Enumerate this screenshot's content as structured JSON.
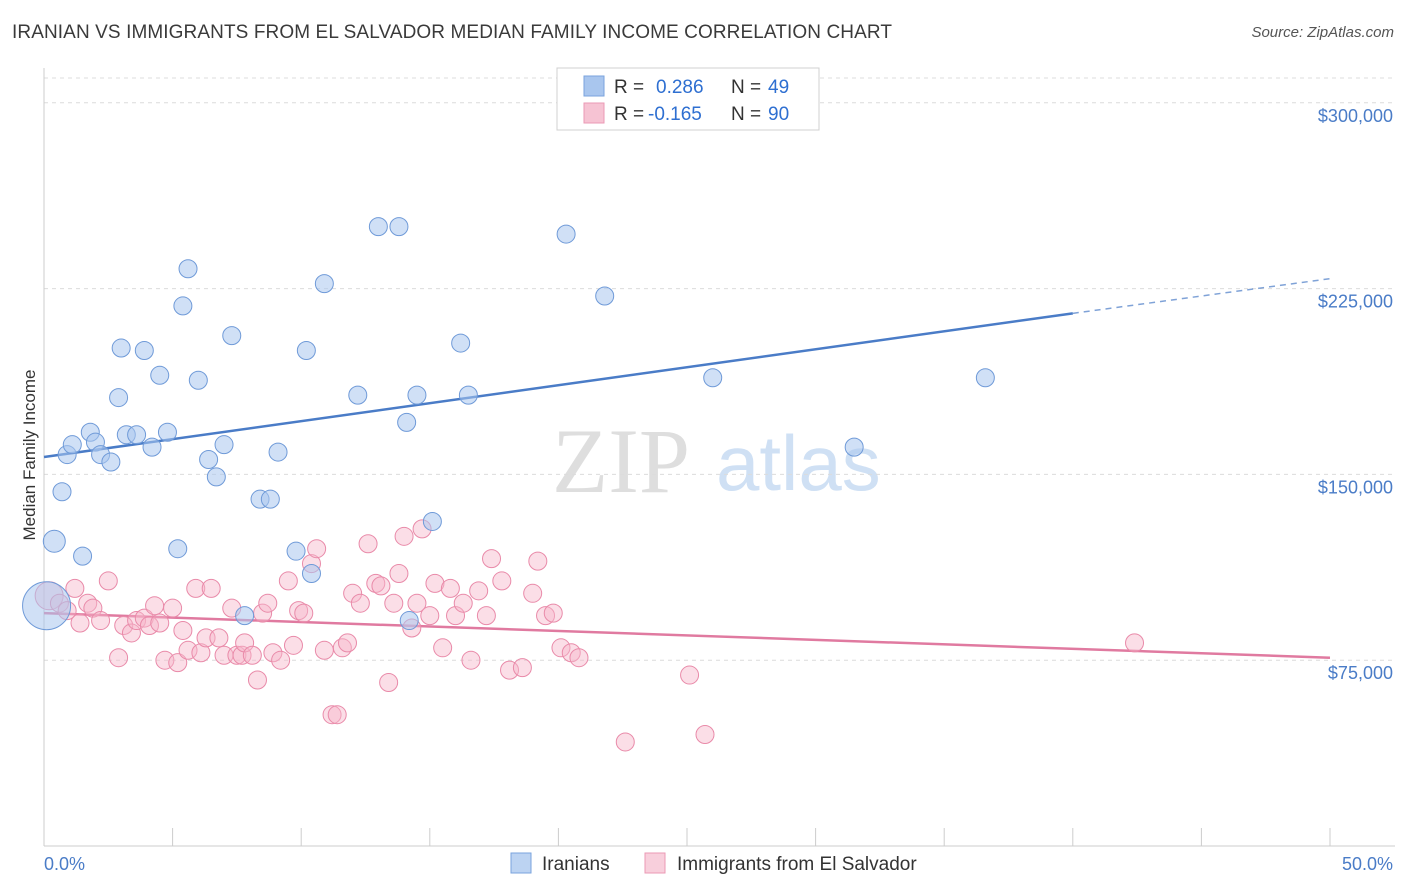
{
  "header": {
    "title": "IRANIAN VS IMMIGRANTS FROM EL SALVADOR MEDIAN FAMILY INCOME CORRELATION CHART",
    "source": "Source: ZipAtlas.com"
  },
  "watermark": {
    "zip": "ZIP",
    "atlas": "atlas"
  },
  "legend": {
    "r_label": "R =",
    "n_label": "N =",
    "rows": [
      {
        "r": "0.286",
        "n": "49",
        "color": "#a9c6ee"
      },
      {
        "r": "-0.165",
        "n": "90",
        "color": "#f6b6ca"
      }
    ]
  },
  "bottom_legend": [
    "Iranians",
    "Immigrants from El Salvador"
  ],
  "chart_data": {
    "type": "scatter",
    "ylabel": "Median Family Income",
    "xlim": [
      0,
      50
    ],
    "ylim": [
      0,
      310000
    ],
    "x_tick_labels": [
      "0.0%",
      "50.0%"
    ],
    "y_ticks": [
      75000,
      150000,
      225000,
      300000
    ],
    "y_tick_labels": [
      "$75,000",
      "$150,000",
      "$225,000",
      "$300,000"
    ],
    "grid": true,
    "colors": {
      "iranians": "#4a7cc7",
      "el_salvador": "#e07aa0"
    },
    "series": [
      {
        "name": "Iranians",
        "trend": {
          "x0": 0,
          "y0": 157000,
          "x1": 40,
          "y1": 215000,
          "dash_to_x": 50,
          "dash_to_y": 229000
        },
        "points": [
          [
            0.1,
            97000,
            24
          ],
          [
            0.4,
            123000,
            11
          ],
          [
            0.7,
            143000,
            9
          ],
          [
            0.9,
            158000,
            9
          ],
          [
            1.1,
            162000,
            9
          ],
          [
            1.5,
            117000,
            9
          ],
          [
            1.8,
            167000,
            9
          ],
          [
            2.0,
            163000,
            9
          ],
          [
            2.2,
            158000,
            9
          ],
          [
            2.6,
            155000,
            9
          ],
          [
            2.9,
            181000,
            9
          ],
          [
            3.0,
            201000,
            9
          ],
          [
            3.2,
            166000,
            9
          ],
          [
            3.6,
            166000,
            9
          ],
          [
            3.9,
            200000,
            9
          ],
          [
            4.2,
            161000,
            9
          ],
          [
            4.5,
            190000,
            9
          ],
          [
            4.8,
            167000,
            9
          ],
          [
            5.2,
            120000,
            9
          ],
          [
            5.4,
            218000,
            9
          ],
          [
            5.6,
            233000,
            9
          ],
          [
            6.0,
            188000,
            9
          ],
          [
            6.4,
            156000,
            9
          ],
          [
            6.7,
            149000,
            9
          ],
          [
            7.0,
            162000,
            9
          ],
          [
            7.3,
            206000,
            9
          ],
          [
            7.8,
            93000,
            9
          ],
          [
            8.4,
            140000,
            9
          ],
          [
            8.8,
            140000,
            9
          ],
          [
            9.1,
            159000,
            9
          ],
          [
            9.8,
            119000,
            9
          ],
          [
            10.2,
            200000,
            9
          ],
          [
            10.4,
            110000,
            9
          ],
          [
            10.9,
            227000,
            9
          ],
          [
            12.2,
            182000,
            9
          ],
          [
            13.0,
            250000,
            9
          ],
          [
            13.8,
            250000,
            9
          ],
          [
            14.1,
            171000,
            9
          ],
          [
            14.5,
            182000,
            9
          ],
          [
            14.2,
            91000,
            9
          ],
          [
            15.1,
            131000,
            9
          ],
          [
            16.2,
            203000,
            9
          ],
          [
            16.5,
            182000,
            9
          ],
          [
            20.3,
            247000,
            9
          ],
          [
            21.8,
            222000,
            9
          ],
          [
            26.0,
            189000,
            9
          ],
          [
            31.5,
            161000,
            9
          ],
          [
            36.6,
            189000,
            9
          ]
        ]
      },
      {
        "name": "Immigrants from El Salvador",
        "trend": {
          "x0": 0,
          "y0": 94000,
          "x1": 50,
          "y1": 76000
        },
        "points": [
          [
            0.2,
            101000,
            14
          ],
          [
            0.6,
            98000,
            9
          ],
          [
            0.9,
            95000,
            9
          ],
          [
            1.2,
            104000,
            9
          ],
          [
            1.4,
            90000,
            9
          ],
          [
            1.7,
            98000,
            9
          ],
          [
            1.9,
            96000,
            9
          ],
          [
            2.2,
            91000,
            9
          ],
          [
            2.5,
            107000,
            9
          ],
          [
            2.9,
            76000,
            9
          ],
          [
            3.1,
            89000,
            9
          ],
          [
            3.4,
            86000,
            9
          ],
          [
            3.6,
            91000,
            9
          ],
          [
            3.9,
            92000,
            9
          ],
          [
            4.1,
            89000,
            9
          ],
          [
            4.3,
            97000,
            9
          ],
          [
            4.5,
            90000,
            9
          ],
          [
            4.7,
            75000,
            9
          ],
          [
            5.0,
            96000,
            9
          ],
          [
            5.2,
            74000,
            9
          ],
          [
            5.4,
            87000,
            9
          ],
          [
            5.6,
            79000,
            9
          ],
          [
            5.9,
            104000,
            9
          ],
          [
            6.1,
            78000,
            9
          ],
          [
            6.3,
            84000,
            9
          ],
          [
            6.5,
            104000,
            9
          ],
          [
            6.8,
            84000,
            9
          ],
          [
            7.0,
            77000,
            9
          ],
          [
            7.3,
            96000,
            9
          ],
          [
            7.5,
            77000,
            9
          ],
          [
            7.7,
            77000,
            9
          ],
          [
            7.8,
            82000,
            9
          ],
          [
            8.1,
            77000,
            9
          ],
          [
            8.3,
            67000,
            9
          ],
          [
            8.5,
            94000,
            9
          ],
          [
            8.7,
            98000,
            9
          ],
          [
            8.9,
            78000,
            9
          ],
          [
            9.2,
            75000,
            9
          ],
          [
            9.5,
            107000,
            9
          ],
          [
            9.7,
            81000,
            9
          ],
          [
            9.9,
            95000,
            9
          ],
          [
            10.1,
            94000,
            9
          ],
          [
            10.4,
            114000,
            9
          ],
          [
            10.6,
            120000,
            9
          ],
          [
            10.9,
            79000,
            9
          ],
          [
            11.2,
            53000,
            9
          ],
          [
            11.4,
            53000,
            9
          ],
          [
            11.6,
            80000,
            9
          ],
          [
            11.8,
            82000,
            9
          ],
          [
            12.0,
            102000,
            9
          ],
          [
            12.3,
            98000,
            9
          ],
          [
            12.6,
            122000,
            9
          ],
          [
            12.9,
            106000,
            9
          ],
          [
            13.1,
            105000,
            9
          ],
          [
            13.4,
            66000,
            9
          ],
          [
            13.6,
            98000,
            9
          ],
          [
            13.8,
            110000,
            9
          ],
          [
            14.0,
            125000,
            9
          ],
          [
            14.3,
            88000,
            9
          ],
          [
            14.5,
            98000,
            9
          ],
          [
            14.7,
            128000,
            9
          ],
          [
            15.0,
            93000,
            9
          ],
          [
            15.2,
            106000,
            9
          ],
          [
            15.5,
            80000,
            9
          ],
          [
            15.8,
            104000,
            9
          ],
          [
            16.0,
            93000,
            9
          ],
          [
            16.3,
            98000,
            9
          ],
          [
            16.6,
            75000,
            9
          ],
          [
            16.9,
            103000,
            9
          ],
          [
            17.2,
            93000,
            9
          ],
          [
            17.4,
            116000,
            9
          ],
          [
            17.8,
            107000,
            9
          ],
          [
            18.1,
            71000,
            9
          ],
          [
            18.6,
            72000,
            9
          ],
          [
            19.0,
            102000,
            9
          ],
          [
            19.2,
            115000,
            9
          ],
          [
            19.5,
            93000,
            9
          ],
          [
            19.8,
            94000,
            9
          ],
          [
            20.1,
            80000,
            9
          ],
          [
            20.5,
            78000,
            9
          ],
          [
            20.8,
            76000,
            9
          ],
          [
            22.6,
            42000,
            9
          ],
          [
            25.1,
            69000,
            9
          ],
          [
            25.7,
            45000,
            9
          ],
          [
            42.4,
            82000,
            9
          ]
        ]
      }
    ]
  }
}
